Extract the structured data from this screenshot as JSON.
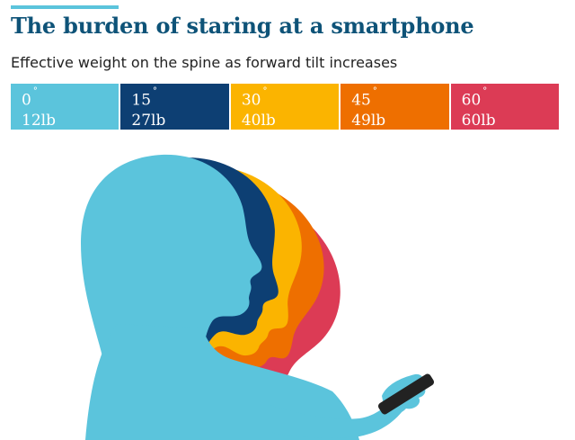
{
  "title": "The burden of staring at a smartphone",
  "subtitle": "Effective weight on the spine as forward tilt increases",
  "degree_symbol": "°",
  "colors": {
    "title": "#0e5378",
    "accent": "#5bc4dc",
    "phone": "#222222"
  },
  "chart_data": {
    "type": "table",
    "title": "The burden of staring at a smartphone",
    "subtitle": "Effective weight on the spine as forward tilt increases",
    "categories": [
      "0",
      "15",
      "30",
      "45",
      "60"
    ],
    "angle_deg": [
      0,
      15,
      30,
      45,
      60
    ],
    "weight_lb": [
      12,
      27,
      40,
      49,
      60
    ],
    "labels": [
      "12lb",
      "27lb",
      "40lb",
      "49lb",
      "60lb"
    ],
    "colors": [
      "#5bc4dc",
      "#0d3f73",
      "#fbb400",
      "#ee6f00",
      "#dc3b55"
    ]
  }
}
